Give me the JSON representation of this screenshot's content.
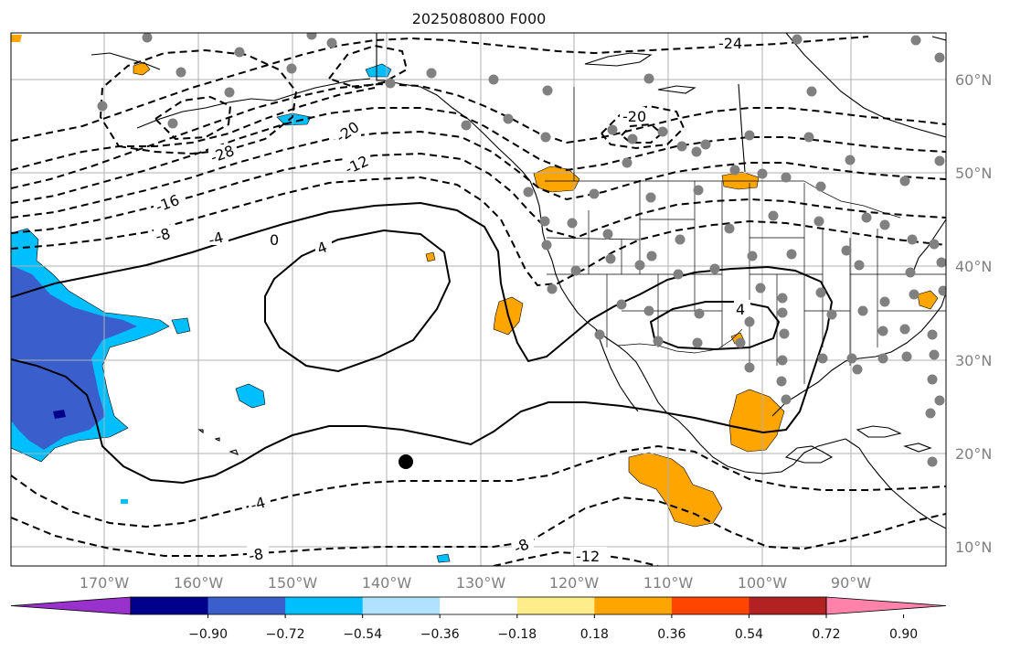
{
  "title": "2025080800 F000",
  "axes": {
    "lon_labels": [
      "170°W",
      "160°W",
      "150°W",
      "140°W",
      "130°W",
      "120°W",
      "110°W",
      "100°W",
      "90°W"
    ],
    "lat_labels": [
      "60°N",
      "50°N",
      "40°N",
      "30°N",
      "20°N",
      "10°N"
    ]
  },
  "colorbar": {
    "colors": [
      "#9932CC",
      "#00008B",
      "#3A5FCD",
      "#00BFFF",
      "#B0E2FF",
      "#FFFFFF",
      "#FFEC8B",
      "#FFA500",
      "#FF4500",
      "#B22222",
      "#FF82AB"
    ],
    "tick_labels": [
      "−0.90",
      "−0.72",
      "−0.54",
      "−0.36",
      "−0.18",
      "0.18",
      "0.36",
      "0.54",
      "0.72",
      "0.90"
    ]
  },
  "contour_labels": [
    "-24",
    "-20",
    "-28",
    "-20",
    "-12",
    "-16",
    "-8",
    "-4",
    "0",
    "4",
    "4",
    "-4",
    "-8",
    "-8",
    "-12"
  ],
  "colors": {
    "gridline": "#b0b0b0",
    "station_dot": "#808080",
    "marker": "#000000",
    "positive_shading": "#FFA500",
    "negative_light": "#00BFFF",
    "negative_mid": "#3A5FCD",
    "negative_dark": "#00008B"
  }
}
